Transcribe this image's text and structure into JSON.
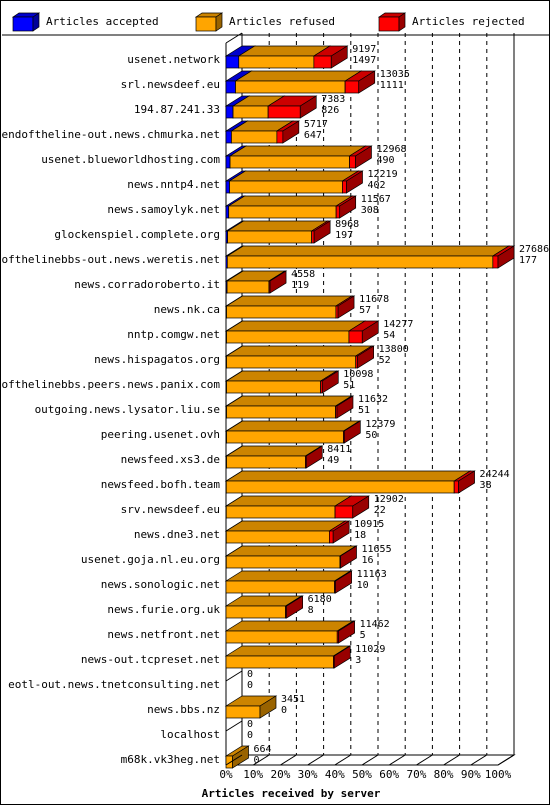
{
  "chart_data": {
    "type": "bar",
    "orientation": "horizontal",
    "stacked": true,
    "xlabel": "Articles received by server",
    "xticks": [
      "0%",
      "10%",
      "20%",
      "30%",
      "40%",
      "50%",
      "60%",
      "70%",
      "80%",
      "90%",
      "100%"
    ],
    "xlim": [
      0,
      100
    ],
    "grid": "vertical-dashed",
    "legend_position": "top",
    "series": [
      {
        "name": "Articles accepted",
        "color": "#0000ff"
      },
      {
        "name": "Articles refused",
        "color": "#ffa500"
      },
      {
        "name": "Articles rejected",
        "color": "#ff0000"
      }
    ],
    "rows": [
      {
        "server": "usenet.network",
        "total": "9197",
        "accepted_label": "1497",
        "accepted_pct": 4.7,
        "refused_pct": 27.6,
        "rejected_pct": 6.4
      },
      {
        "server": "srl.newsdeef.eu",
        "total": "13035",
        "accepted_label": "1111",
        "accepted_pct": 3.5,
        "refused_pct": 40.3,
        "rejected_pct": 5.0
      },
      {
        "server": "194.87.241.33",
        "total": "7383",
        "accepted_label": "826",
        "accepted_pct": 2.6,
        "refused_pct": 12.9,
        "rejected_pct": 11.8
      },
      {
        "server": "endoftheline-out.news.chmurka.net",
        "total": "5717",
        "accepted_label": "647",
        "accepted_pct": 2.0,
        "refused_pct": 16.7,
        "rejected_pct": 2.2
      },
      {
        "server": "usenet.blueworldhosting.com",
        "total": "12968",
        "accepted_label": "490",
        "accepted_pct": 1.5,
        "refused_pct": 43.9,
        "rejected_pct": 2.2
      },
      {
        "server": "news.nntp4.net",
        "total": "12219",
        "accepted_label": "402",
        "accepted_pct": 1.3,
        "refused_pct": 41.5,
        "rejected_pct": 1.5
      },
      {
        "server": "news.samoylyk.net",
        "total": "11567",
        "accepted_label": "308",
        "accepted_pct": 1.0,
        "refused_pct": 39.5,
        "rejected_pct": 1.3
      },
      {
        "server": "glockenspiel.complete.org",
        "total": "8968",
        "accepted_label": "197",
        "accepted_pct": 0.6,
        "refused_pct": 30.9,
        "rejected_pct": 0.9
      },
      {
        "server": "endofthelinebbs-out.news.weretis.net",
        "total": "27686",
        "accepted_label": "177",
        "accepted_pct": 0.5,
        "refused_pct": 97.6,
        "rejected_pct": 1.9
      },
      {
        "server": "news.corradoroberto.it",
        "total": "4558",
        "accepted_label": "119",
        "accepted_pct": 0.4,
        "refused_pct": 15.4,
        "rejected_pct": 0.4
      },
      {
        "server": "news.nk.ca",
        "total": "11678",
        "accepted_label": "57",
        "accepted_pct": 0.2,
        "refused_pct": 40.2,
        "rejected_pct": 0.8
      },
      {
        "server": "nntp.comgw.net",
        "total": "14277",
        "accepted_label": "54",
        "accepted_pct": 0.2,
        "refused_pct": 45.0,
        "rejected_pct": 4.9
      },
      {
        "server": "news.hispagatos.org",
        "total": "13800",
        "accepted_label": "52",
        "accepted_pct": 0.2,
        "refused_pct": 47.5,
        "rejected_pct": 0.7
      },
      {
        "server": "endofthelinebbs.peers.news.panix.com",
        "total": "10098",
        "accepted_label": "51",
        "accepted_pct": 0.2,
        "refused_pct": 34.6,
        "rejected_pct": 0.6
      },
      {
        "server": "outgoing.news.lysator.liu.se",
        "total": "11632",
        "accepted_label": "51",
        "accepted_pct": 0.2,
        "refused_pct": 40.1,
        "rejected_pct": 0.5
      },
      {
        "server": "peering.usenet.ovh",
        "total": "12379",
        "accepted_label": "50",
        "accepted_pct": 0.2,
        "refused_pct": 43.0,
        "rejected_pct": 0.3
      },
      {
        "server": "newsfeed.xs3.de",
        "total": "8411",
        "accepted_label": "49",
        "accepted_pct": 0.2,
        "refused_pct": 29.0,
        "rejected_pct": 0.3
      },
      {
        "server": "newsfeed.bofh.team",
        "total": "24244",
        "accepted_label": "38",
        "accepted_pct": 0.1,
        "refused_pct": 83.8,
        "rejected_pct": 1.6
      },
      {
        "server": "srv.newsdeef.eu",
        "total": "12902",
        "accepted_label": "22",
        "accepted_pct": 0.1,
        "refused_pct": 40.0,
        "rejected_pct": 6.5
      },
      {
        "server": "news.dne3.net",
        "total": "10915",
        "accepted_label": "18",
        "accepted_pct": 0.1,
        "refused_pct": 37.9,
        "rejected_pct": 1.4
      },
      {
        "server": "usenet.goja.nl.eu.org",
        "total": "11655",
        "accepted_label": "16",
        "accepted_pct": 0.1,
        "refused_pct": 41.8,
        "rejected_pct": 0.2
      },
      {
        "server": "news.sonologic.net",
        "total": "11163",
        "accepted_label": "10",
        "accepted_pct": 0.0,
        "refused_pct": 39.9,
        "rejected_pct": 0.4
      },
      {
        "server": "news.furie.org.uk",
        "total": "6180",
        "accepted_label": "8",
        "accepted_pct": 0.0,
        "refused_pct": 21.9,
        "rejected_pct": 0.4
      },
      {
        "server": "news.netfront.net",
        "total": "11462",
        "accepted_label": "5",
        "accepted_pct": 0.0,
        "refused_pct": 40.9,
        "rejected_pct": 0.5
      },
      {
        "server": "news-out.tcpreset.net",
        "total": "11029",
        "accepted_label": "3",
        "accepted_pct": 0.0,
        "refused_pct": 39.5,
        "rejected_pct": 0.3
      },
      {
        "server": "eotl-out.news.tnetconsulting.net",
        "total": "0",
        "accepted_label": "0",
        "accepted_pct": 0.0,
        "refused_pct": 0.0,
        "rejected_pct": 0.0
      },
      {
        "server": "news.bbs.nz",
        "total": "3451",
        "accepted_label": "0",
        "accepted_pct": 0.0,
        "refused_pct": 12.5,
        "rejected_pct": 0.0
      },
      {
        "server": "localhost",
        "total": "0",
        "accepted_label": "0",
        "accepted_pct": 0.0,
        "refused_pct": 0.0,
        "rejected_pct": 0.0
      },
      {
        "server": "m68k.vk3heg.net",
        "total": "664",
        "accepted_label": "0",
        "accepted_pct": 0.0,
        "refused_pct": 2.4,
        "rejected_pct": 0.0
      }
    ]
  }
}
